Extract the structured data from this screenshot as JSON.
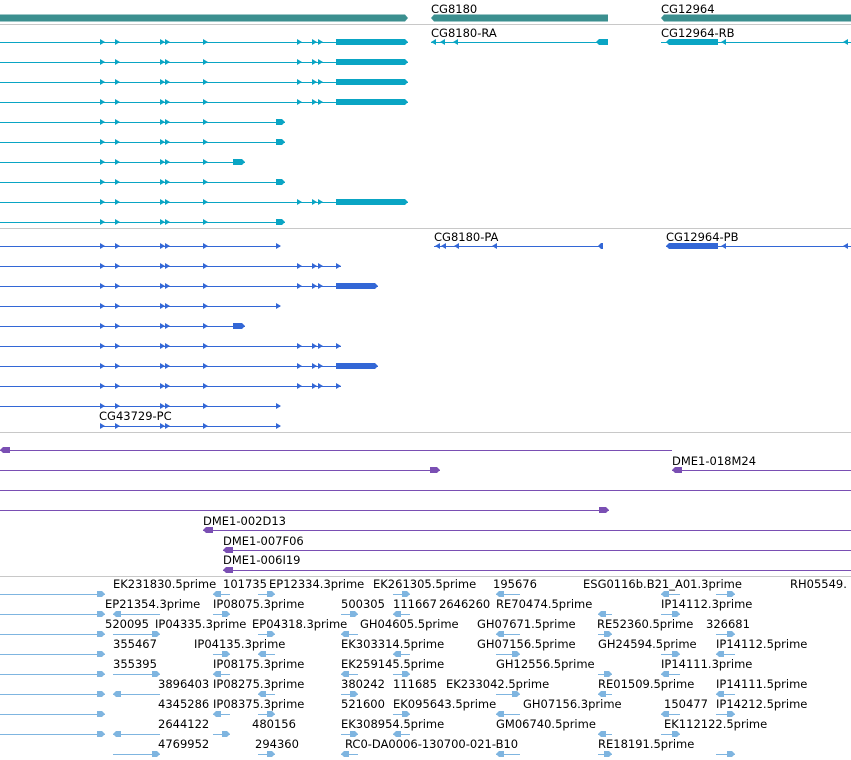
{
  "colors": {
    "gene": "#3b8f8f",
    "transcript_rna": "#0aa5c4",
    "transcript_protein": "#3367d6",
    "clone": "#7a4fb3",
    "est": "#7fb5e0",
    "separator": "#c8c8c8"
  },
  "tracks": {
    "genes": {
      "labels": [
        "CG8180",
        "CG12964"
      ]
    },
    "transcripts": {
      "labels": [
        "CG8180-RA",
        "CG12964-RB"
      ]
    },
    "proteins": {
      "labels": [
        "CG8180-PA",
        "CG12964-PB",
        "CG43729-PC"
      ]
    },
    "clones": {
      "labels": [
        "DME1-018M24",
        "DME1-002D13",
        "DME1-007F06",
        "DME1-006I19"
      ]
    },
    "ests": {
      "rows": [
        [
          "EK231830.5prime",
          "101735",
          "EP12334.3prime",
          "EK261305.5prime",
          "195676",
          "ESG0116b.B21_A01.3prime",
          "RH05549."
        ],
        [
          "EP21354.3prime",
          "IP08075.3prime",
          "500305",
          "111667",
          "2646260",
          "RE70474.5prime",
          "IP14112.3prime"
        ],
        [
          "520095",
          "IP04335.3prime",
          "EP04318.3prime",
          "GH04605.5prime",
          "GH07671.5prime",
          "RE52360.5prime",
          "326681"
        ],
        [
          "355467",
          "IP04135.3prime",
          "EK303314.5prime",
          "GH07156.5prime",
          "GH24594.5prime",
          "IP14112.5prime"
        ],
        [
          "355395",
          "IP08175.3prime",
          "EK259145.5prime",
          "GH12556.5prime",
          "IP14111.3prime"
        ],
        [
          "3896403",
          "IP08275.3prime",
          "380242",
          "111685",
          "EK233042.5prime",
          "RE01509.5prime",
          "IP14111.5prime"
        ],
        [
          "4345286",
          "IP08375.3prime",
          "521600",
          "EK095643.5prime",
          "GH07156.3prime",
          "150477",
          "IP14212.5prime"
        ],
        [
          "2644122",
          "480156",
          "EK308954.5prime",
          "GM06740.5prime",
          "EK112122.5prime"
        ],
        [
          "4769952",
          "294360",
          "RC0-DA0006-130700-021-B10",
          "RE18191.5prime"
        ]
      ]
    }
  }
}
